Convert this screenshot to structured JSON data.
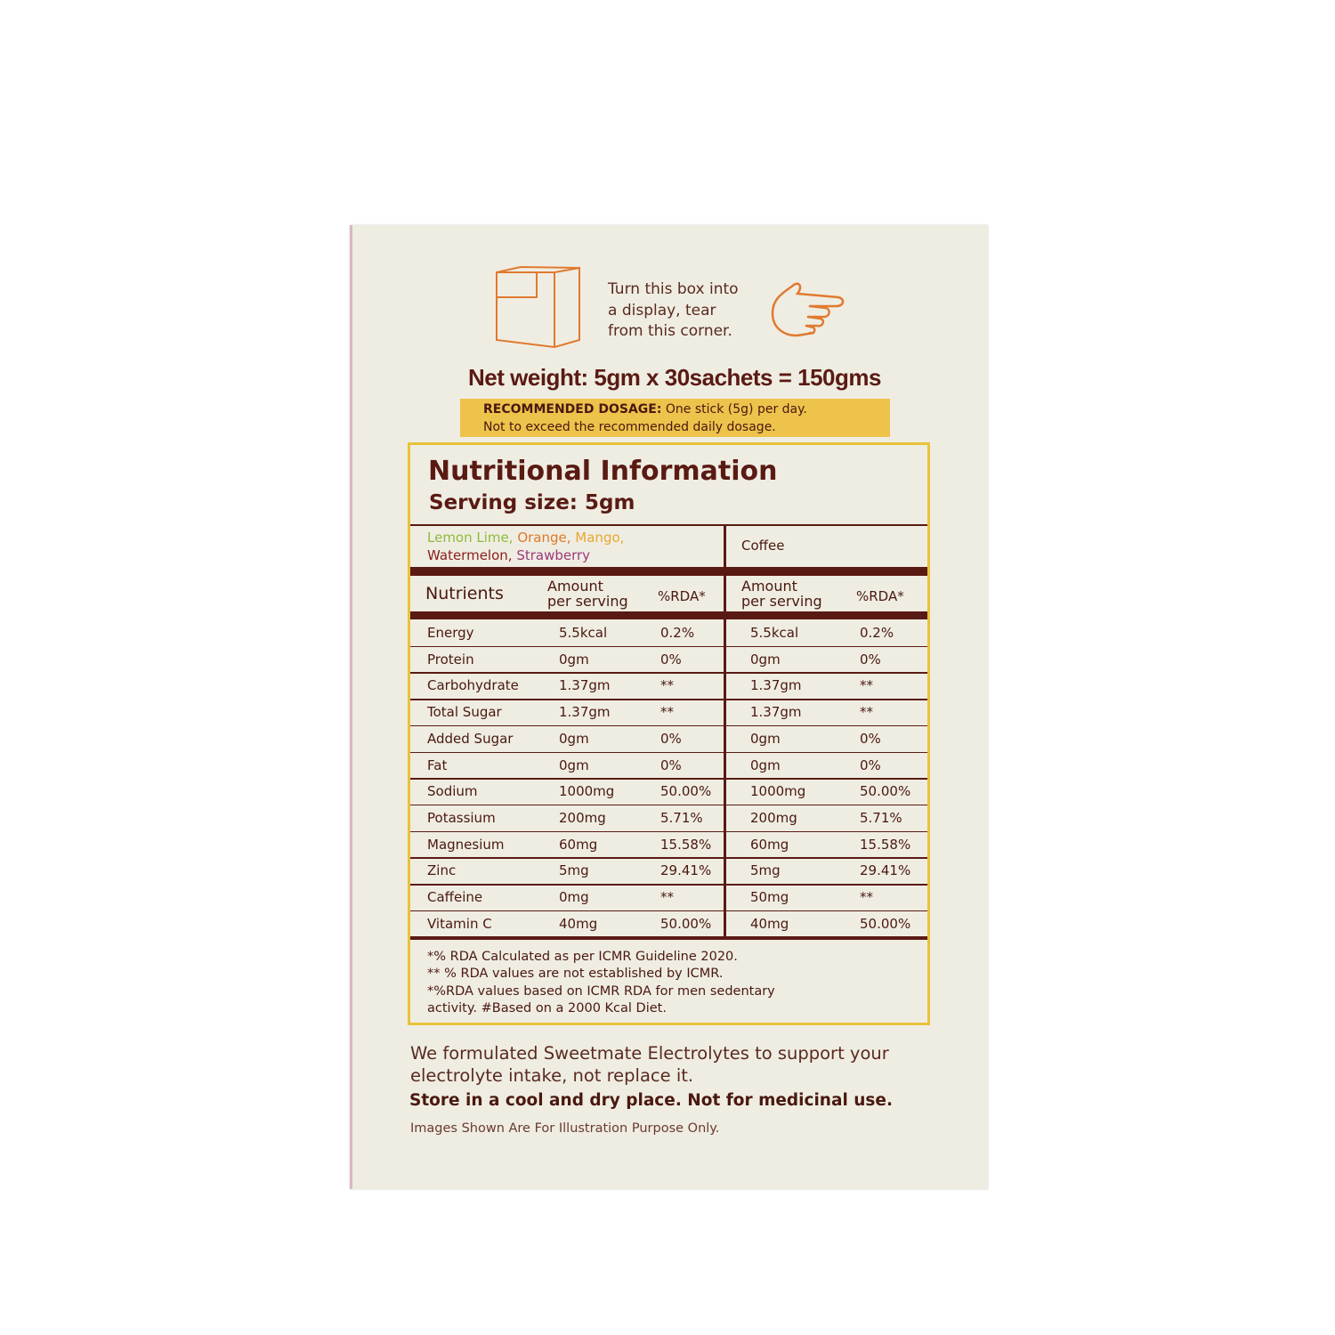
{
  "tear_instruction": [
    "Turn this box into",
    "a display, tear",
    "from this corner."
  ],
  "icons": {
    "box": "display-box-icon",
    "hand": "pointing-hand-icon"
  },
  "net_weight": "Net weight: 5gm x 30sachets = 150gms",
  "dosage": {
    "label": "RECOMMENDED DOSAGE:",
    "line1": "One stick (5g) per day.",
    "line2": "Not to exceed the recommended daily dosage."
  },
  "nutrition": {
    "title": "Nutritional Information",
    "serving_size": "Serving size: 5gm",
    "flavours": [
      {
        "name": "Lemon Lime,",
        "color": "#8dbb3c"
      },
      {
        "name": "Orange,",
        "color": "#e0782a"
      },
      {
        "name": "Mango,",
        "color": "#e8a830"
      },
      {
        "name": "Watermelon,",
        "color": "#8a1e1e"
      },
      {
        "name": "Strawberry",
        "color": "#9a3a7a"
      }
    ],
    "coffee_label": "Coffee",
    "headers": {
      "nutrients": "Nutrients",
      "amount": [
        "Amount",
        "per serving"
      ],
      "rda": "%RDA*"
    },
    "rows": [
      [
        "Energy",
        "5.5kcal",
        "0.2%",
        "5.5kcal",
        "0.2%"
      ],
      [
        "Protein",
        "0gm",
        "0%",
        "0gm",
        "0%"
      ],
      [
        "Carbohydrate",
        "1.37gm",
        "**",
        "1.37gm",
        "**"
      ],
      [
        "Total Sugar",
        "1.37gm",
        "**",
        "1.37gm",
        "**"
      ],
      [
        "Added Sugar",
        "0gm",
        "0%",
        "0gm",
        "0%"
      ],
      [
        "Fat",
        "0gm",
        "0%",
        "0gm",
        "0%"
      ],
      [
        "Sodium",
        "1000mg",
        "50.00%",
        "1000mg",
        "50.00%"
      ],
      [
        "Potassium",
        "200mg",
        "5.71%",
        "200mg",
        "5.71%"
      ],
      [
        "Magnesium",
        "60mg",
        "15.58%",
        "60mg",
        "15.58%"
      ],
      [
        "Zinc",
        "5mg",
        "29.41%",
        "5mg",
        "29.41%"
      ],
      [
        "Caffeine",
        "0mg",
        "**",
        "50mg",
        "**"
      ],
      [
        "Vitamin C",
        "40mg",
        "50.00%",
        "40mg",
        "50.00%"
      ]
    ],
    "footnotes": [
      "*% RDA Calculated as per ICMR Guideline 2020.",
      "** % RDA values are not established by ICMR.",
      "*%RDA values based on ICMR RDA for men sedentary",
      "activity. #Based on a 2000 Kcal Diet."
    ]
  },
  "statement": [
    "We formulated Sweetmate Electrolytes to support your",
    "electrolyte intake, not replace it."
  ],
  "storage": "Store in a cool and dry place. Not for medicinal use.",
  "disclaimer": "Images Shown Are For Illustration Purpose Only.",
  "colors": {
    "box": "#efede2",
    "brown": "#5a1a14",
    "gold": "#e8c23a",
    "dosage_bg": "#edc34c",
    "orange": "#e07a30"
  }
}
